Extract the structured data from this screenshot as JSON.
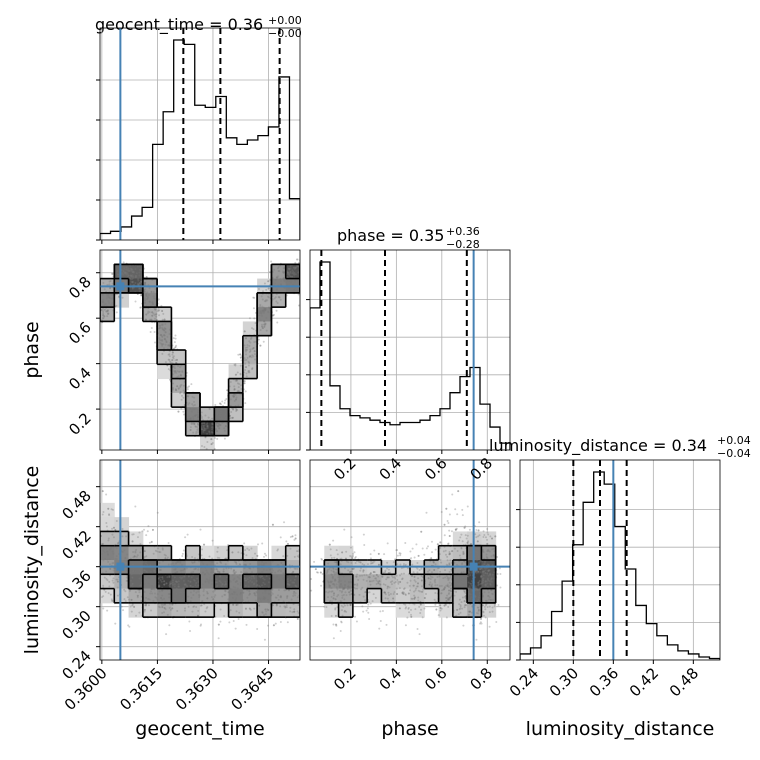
{
  "chart_data": {
    "type": "corner",
    "parameters": [
      "geocent_time",
      "phase",
      "luminosity_distance"
    ],
    "colors": {
      "truth": "#4682b4",
      "hist": "#000000",
      "grid": "#b0b0b0",
      "density": "#000000"
    },
    "titles": {
      "geocent_time": {
        "label": "geocent_time",
        "value": "0.36",
        "plus": "+0.00",
        "minus": "−0.00"
      },
      "phase": {
        "label": "phase",
        "value": "0.35",
        "plus": "+0.36",
        "minus": "−0.28"
      },
      "luminosity_distance": {
        "label": "luminosity_distance",
        "value": "0.34",
        "plus": "+0.04",
        "minus": "−0.04"
      }
    },
    "axis_labels": {
      "x": [
        "geocent_time",
        "phase",
        "luminosity_distance"
      ],
      "y": [
        "phase",
        "luminosity_distance"
      ]
    },
    "ranges": {
      "geocent_time": [
        0.35995,
        0.36535
      ],
      "phase": [
        0.02,
        0.9
      ],
      "luminosity_distance": [
        0.22,
        0.52
      ]
    },
    "ticks": {
      "geocent_time": {
        "values": [
          0.36,
          0.3615,
          0.363,
          0.3645
        ],
        "labels": [
          "0.3600",
          "0.3615",
          "0.3630",
          "0.3645"
        ]
      },
      "phase": {
        "values": [
          0.2,
          0.4,
          0.6,
          0.8
        ],
        "labels": [
          "0.2",
          "0.4",
          "0.6",
          "0.8"
        ]
      },
      "luminosity_distance": {
        "values": [
          0.24,
          0.3,
          0.36,
          0.42,
          0.48
        ],
        "labels": [
          "0.24",
          "0.30",
          "0.36",
          "0.42",
          "0.48"
        ]
      }
    },
    "truths": {
      "geocent_time": 0.3605,
      "phase": 0.74,
      "luminosity_distance": 0.36
    },
    "quantiles": {
      "geocent_time": [
        0.3622,
        0.3632,
        0.3648
      ],
      "phase": [
        0.07,
        0.35,
        0.71
      ],
      "luminosity_distance": [
        0.3,
        0.34,
        0.38
      ]
    },
    "histograms": {
      "geocent_time": {
        "values": [
          3,
          4,
          6,
          11,
          15,
          44,
          59,
          92,
          90,
          62,
          61,
          66,
          47,
          44,
          46,
          48,
          52,
          75,
          19
        ]
      },
      "phase": {
        "values": [
          62,
          82,
          28,
          18,
          15,
          14,
          13,
          12,
          11,
          12,
          12,
          13,
          15,
          18,
          25,
          32,
          36,
          20,
          10,
          3
        ]
      },
      "luminosity_distance": {
        "values": [
          2,
          4,
          8,
          16,
          26,
          38,
          52,
          62,
          58,
          44,
          30,
          18,
          12,
          8,
          5,
          3,
          2,
          1,
          0.5
        ]
      }
    }
  }
}
